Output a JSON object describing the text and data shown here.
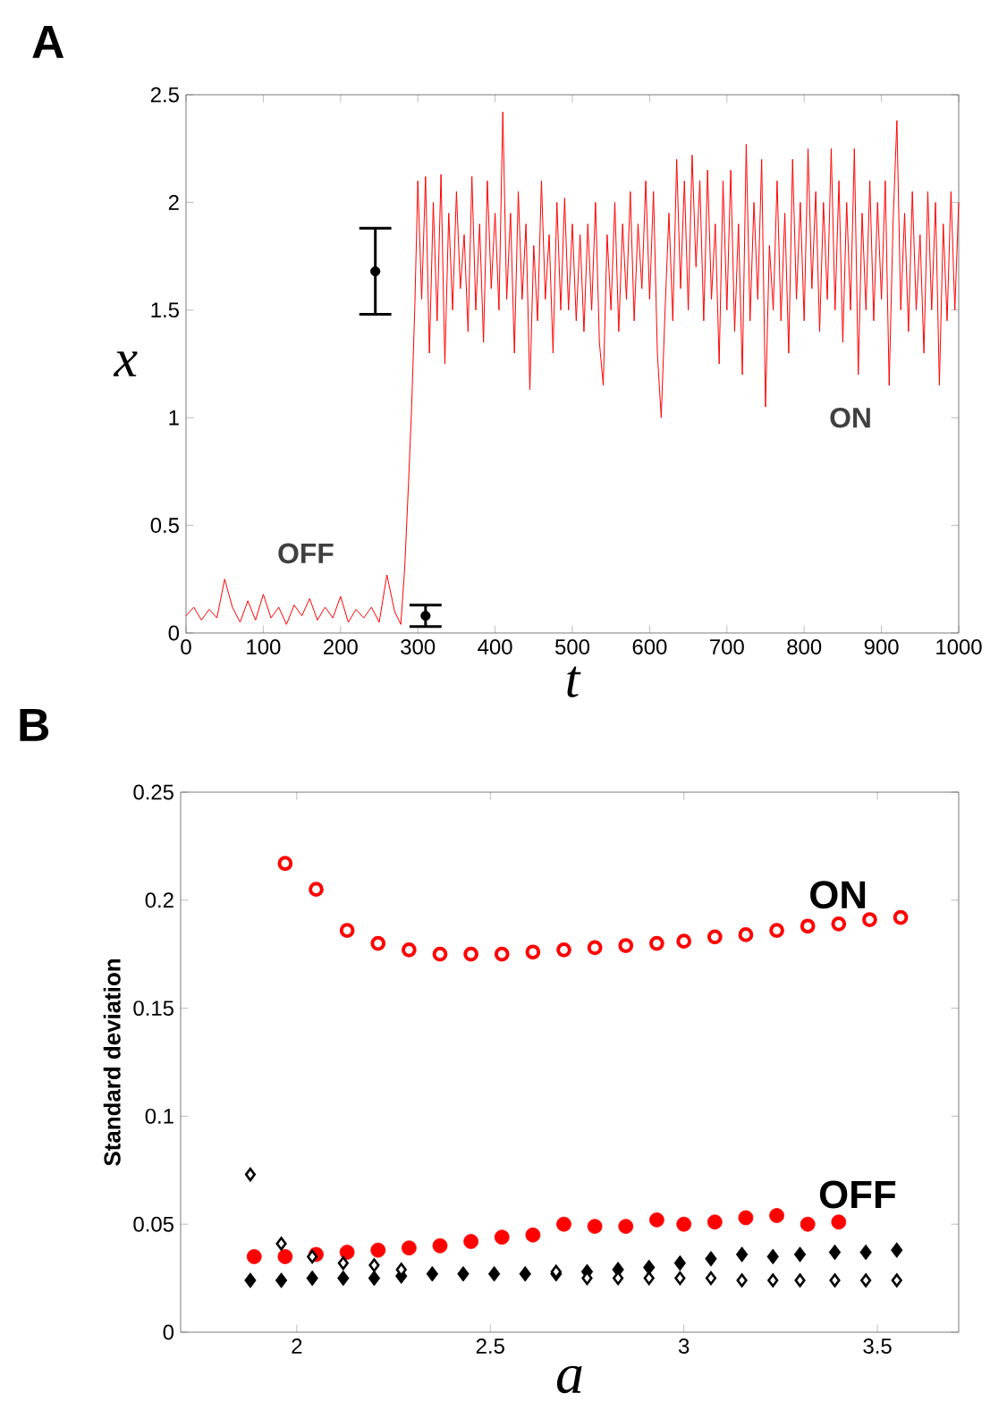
{
  "chart_data": [
    {
      "type": "line",
      "title": "A",
      "xlabel": "t",
      "ylabel": "x",
      "xlim": [
        0,
        1000
      ],
      "ylim": [
        0,
        2.5
      ],
      "xticks": [
        0,
        100,
        200,
        300,
        400,
        500,
        600,
        700,
        800,
        900,
        1000
      ],
      "yticks": [
        0,
        0.5,
        1,
        1.5,
        2,
        2.5
      ],
      "annotations": [
        "OFF",
        "ON"
      ],
      "series": [
        {
          "type": "line",
          "color": "#ff0000",
          "x": [
            0,
            10,
            20,
            30,
            40,
            50,
            60,
            70,
            80,
            90,
            100,
            110,
            120,
            130,
            140,
            150,
            160,
            170,
            180,
            190,
            200,
            210,
            220,
            230,
            240,
            250,
            260,
            270,
            278,
            283,
            288,
            292,
            296,
            300,
            305,
            310,
            315,
            320,
            325,
            330,
            335,
            340,
            345,
            350,
            355,
            360,
            365,
            370,
            375,
            380,
            385,
            390,
            395,
            400,
            405,
            410,
            415,
            420,
            425,
            430,
            435,
            440,
            445,
            450,
            455,
            460,
            465,
            470,
            475,
            480,
            485,
            490,
            495,
            500,
            505,
            510,
            515,
            520,
            525,
            530,
            535,
            540,
            545,
            550,
            555,
            560,
            565,
            570,
            575,
            580,
            585,
            590,
            595,
            600,
            605,
            610,
            615,
            620,
            625,
            630,
            635,
            640,
            645,
            650,
            655,
            660,
            665,
            670,
            675,
            680,
            685,
            690,
            695,
            700,
            705,
            710,
            715,
            720,
            725,
            730,
            735,
            740,
            745,
            750,
            755,
            760,
            765,
            770,
            775,
            780,
            785,
            790,
            795,
            800,
            805,
            810,
            815,
            820,
            825,
            830,
            835,
            840,
            845,
            850,
            855,
            860,
            865,
            870,
            875,
            880,
            885,
            890,
            895,
            900,
            905,
            910,
            915,
            920,
            925,
            930,
            935,
            940,
            945,
            950,
            955,
            960,
            965,
            970,
            975,
            980,
            985,
            990,
            995,
            1000
          ],
          "values": [
            0.08,
            0.12,
            0.06,
            0.11,
            0.07,
            0.25,
            0.12,
            0.05,
            0.15,
            0.06,
            0.18,
            0.07,
            0.12,
            0.04,
            0.13,
            0.08,
            0.16,
            0.06,
            0.12,
            0.07,
            0.17,
            0.05,
            0.11,
            0.07,
            0.12,
            0.05,
            0.27,
            0.1,
            0.04,
            0.3,
            0.7,
            1.05,
            1.5,
            2.1,
            1.55,
            2.12,
            1.3,
            2.0,
            1.45,
            2.13,
            1.25,
            1.95,
            1.5,
            2.05,
            1.6,
            1.85,
            1.4,
            2.12,
            1.5,
            1.9,
            1.35,
            2.1,
            1.6,
            1.95,
            1.5,
            2.42,
            1.55,
            1.95,
            1.3,
            2.05,
            1.55,
            1.9,
            1.13,
            1.8,
            1.45,
            2.1,
            1.55,
            1.85,
            1.3,
            2.0,
            1.5,
            2.02,
            1.5,
            1.9,
            1.45,
            1.85,
            1.4,
            1.9,
            1.5,
            2.0,
            1.35,
            1.15,
            1.85,
            1.5,
            2.0,
            1.4,
            1.9,
            1.55,
            2.05,
            1.45,
            1.9,
            1.6,
            2.1,
            1.55,
            2.05,
            1.3,
            1.0,
            1.5,
            1.95,
            1.45,
            2.2,
            1.6,
            2.1,
            1.5,
            2.22,
            1.7,
            2.1,
            1.45,
            2.15,
            1.55,
            1.9,
            1.25,
            2.1,
            1.5,
            2.15,
            1.4,
            1.9,
            1.2,
            2.27,
            1.45,
            2.0,
            1.55,
            2.2,
            1.05,
            1.8,
            1.5,
            2.1,
            1.45,
            1.95,
            1.3,
            2.2,
            1.55,
            2.0,
            1.45,
            2.25,
            1.6,
            2.05,
            1.4,
            2.0,
            1.55,
            2.25,
            1.5,
            2.1,
            1.35,
            2.0,
            1.5,
            2.25,
            1.2,
            1.95,
            1.5,
            2.1,
            1.45,
            2.0,
            1.55,
            2.1,
            1.15,
            1.9,
            2.38,
            1.5,
            1.95,
            1.4,
            2.05,
            1.5,
            1.85,
            1.3,
            2.05,
            1.5,
            2.0,
            1.15,
            1.9,
            1.45,
            2.05,
            1.5,
            2.0
          ]
        },
        {
          "type": "scatter",
          "color": "#000000",
          "x": [
            245,
            310
          ],
          "values": [
            1.68,
            0.08
          ],
          "errors": [
            0.2,
            0.05
          ]
        }
      ]
    },
    {
      "type": "scatter",
      "title": "B",
      "xlabel": "a",
      "ylabel": "Standard deviation",
      "xlim": [
        1.7,
        3.71
      ],
      "ylim": [
        0,
        0.25
      ],
      "xticks": [
        2,
        2.5,
        3,
        3.5
      ],
      "yticks": [
        0,
        0.05,
        0.1,
        0.15,
        0.2,
        0.25
      ],
      "annotations": [
        "ON",
        "OFF"
      ],
      "series": [
        {
          "color": "#ff0000",
          "marker": "circle",
          "x": [
            1.97,
            2.05,
            2.13,
            2.21,
            2.29,
            2.37,
            2.45,
            2.53,
            2.61,
            2.69,
            2.77,
            2.85,
            2.93,
            3.0,
            3.08,
            3.16,
            3.24,
            3.32,
            3.4,
            3.48,
            3.56
          ],
          "values": [
            0.217,
            0.205,
            0.186,
            0.18,
            0.177,
            0.175,
            0.175,
            0.175,
            0.176,
            0.177,
            0.178,
            0.179,
            0.18,
            0.181,
            0.183,
            0.184,
            0.186,
            0.188,
            0.189,
            0.191,
            0.192
          ]
        },
        {
          "color": "#ff0000",
          "marker": "circle",
          "x": [
            1.89,
            1.97,
            2.05,
            2.13,
            2.21,
            2.29,
            2.37,
            2.45,
            2.53,
            2.61,
            2.69,
            2.77,
            2.85,
            2.93,
            3.0,
            3.08,
            3.16,
            3.24,
            3.32,
            3.4
          ],
          "values": [
            0.035,
            0.035,
            0.036,
            0.037,
            0.038,
            0.039,
            0.04,
            0.042,
            0.044,
            0.045,
            0.05,
            0.049,
            0.049,
            0.052,
            0.05,
            0.051,
            0.053,
            0.054,
            0.05,
            0.051
          ]
        },
        {
          "color": "#000000",
          "marker": "diamond",
          "x": [
            1.88,
            1.96,
            2.04,
            2.12,
            2.2,
            2.27,
            2.35,
            2.43,
            2.51,
            2.59,
            2.67,
            2.75,
            2.83,
            2.91,
            2.99,
            3.07,
            3.15,
            3.23,
            3.3,
            3.39,
            3.47,
            3.55
          ],
          "values": [
            0.024,
            0.024,
            0.025,
            0.025,
            0.025,
            0.026,
            0.027,
            0.027,
            0.027,
            0.027,
            0.027,
            0.028,
            0.029,
            0.03,
            0.032,
            0.034,
            0.036,
            0.035,
            0.036,
            0.037,
            0.037,
            0.038
          ]
        },
        {
          "color": "#000000",
          "marker": "diamond",
          "x": [
            1.88,
            1.96,
            2.04,
            2.12,
            2.2,
            2.27,
            2.35,
            2.43,
            2.51,
            2.59,
            2.67,
            2.75,
            2.83,
            2.91,
            2.99,
            3.07,
            3.15,
            3.23,
            3.3,
            3.39,
            3.47,
            3.55
          ],
          "values": [
            0.073,
            0.041,
            0.035,
            0.032,
            0.031,
            0.029,
            null,
            null,
            null,
            null,
            0.028,
            0.025,
            0.025,
            0.025,
            0.025,
            0.025,
            0.024,
            0.024,
            0.024,
            0.024,
            0.024,
            0.024
          ]
        }
      ]
    }
  ]
}
